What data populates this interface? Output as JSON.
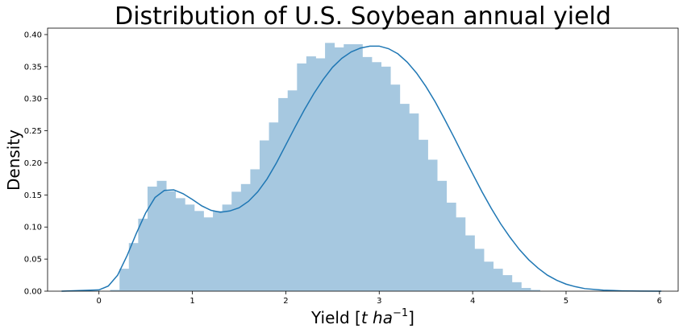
{
  "chart_data": {
    "type": "bar",
    "title": "Distribution of U.S. Soybean annual yield",
    "xlabel_parts": [
      "Yield [",
      "t ha",
      "−1",
      "]"
    ],
    "ylabel": "Density",
    "xlim": [
      -0.55,
      6.2
    ],
    "ylim": [
      0,
      0.41
    ],
    "x_ticks": [
      0,
      1,
      2,
      3,
      4,
      5,
      6
    ],
    "y_ticks": [
      0.0,
      0.05,
      0.1,
      0.15,
      0.2,
      0.25,
      0.3,
      0.35,
      0.4
    ],
    "y_tick_labels": [
      "0.00",
      "0.05",
      "0.10",
      "0.15",
      "0.20",
      "0.25",
      "0.30",
      "0.35",
      "0.40"
    ],
    "grid": false,
    "histogram": {
      "bin_start": 0.12,
      "bin_width": 0.1,
      "values": [
        0.002,
        0.035,
        0.075,
        0.113,
        0.163,
        0.172,
        0.156,
        0.145,
        0.135,
        0.125,
        0.115,
        0.125,
        0.135,
        0.155,
        0.167,
        0.19,
        0.235,
        0.263,
        0.301,
        0.313,
        0.355,
        0.366,
        0.363,
        0.387,
        0.38,
        0.385,
        0.385,
        0.365,
        0.357,
        0.35,
        0.322,
        0.292,
        0.277,
        0.236,
        0.205,
        0.172,
        0.138,
        0.115,
        0.087,
        0.066,
        0.046,
        0.035,
        0.025,
        0.014,
        0.005,
        0.002
      ],
      "color": "#a6c8e0"
    },
    "kde": {
      "color": "#1f77b4",
      "x": [
        -0.4,
        0.0,
        0.1,
        0.2,
        0.3,
        0.4,
        0.5,
        0.6,
        0.7,
        0.8,
        0.9,
        1.0,
        1.1,
        1.2,
        1.3,
        1.4,
        1.5,
        1.6,
        1.7,
        1.8,
        1.9,
        2.0,
        2.1,
        2.2,
        2.3,
        2.4,
        2.5,
        2.6,
        2.7,
        2.8,
        2.9,
        3.0,
        3.1,
        3.2,
        3.3,
        3.4,
        3.5,
        3.6,
        3.7,
        3.8,
        3.9,
        4.0,
        4.1,
        4.2,
        4.3,
        4.4,
        4.5,
        4.6,
        4.7,
        4.8,
        4.9,
        5.0,
        5.1,
        5.2,
        5.4,
        5.6,
        5.8,
        6.02
      ],
      "y": [
        0.0,
        0.002,
        0.008,
        0.025,
        0.055,
        0.09,
        0.122,
        0.146,
        0.157,
        0.158,
        0.152,
        0.143,
        0.133,
        0.126,
        0.123,
        0.125,
        0.13,
        0.14,
        0.155,
        0.175,
        0.2,
        0.228,
        0.256,
        0.283,
        0.308,
        0.33,
        0.349,
        0.363,
        0.373,
        0.379,
        0.382,
        0.382,
        0.378,
        0.37,
        0.357,
        0.34,
        0.319,
        0.295,
        0.268,
        0.24,
        0.211,
        0.183,
        0.155,
        0.129,
        0.105,
        0.084,
        0.065,
        0.049,
        0.036,
        0.025,
        0.017,
        0.011,
        0.007,
        0.004,
        0.0015,
        0.0005,
        0.0001,
        0.0
      ]
    }
  }
}
